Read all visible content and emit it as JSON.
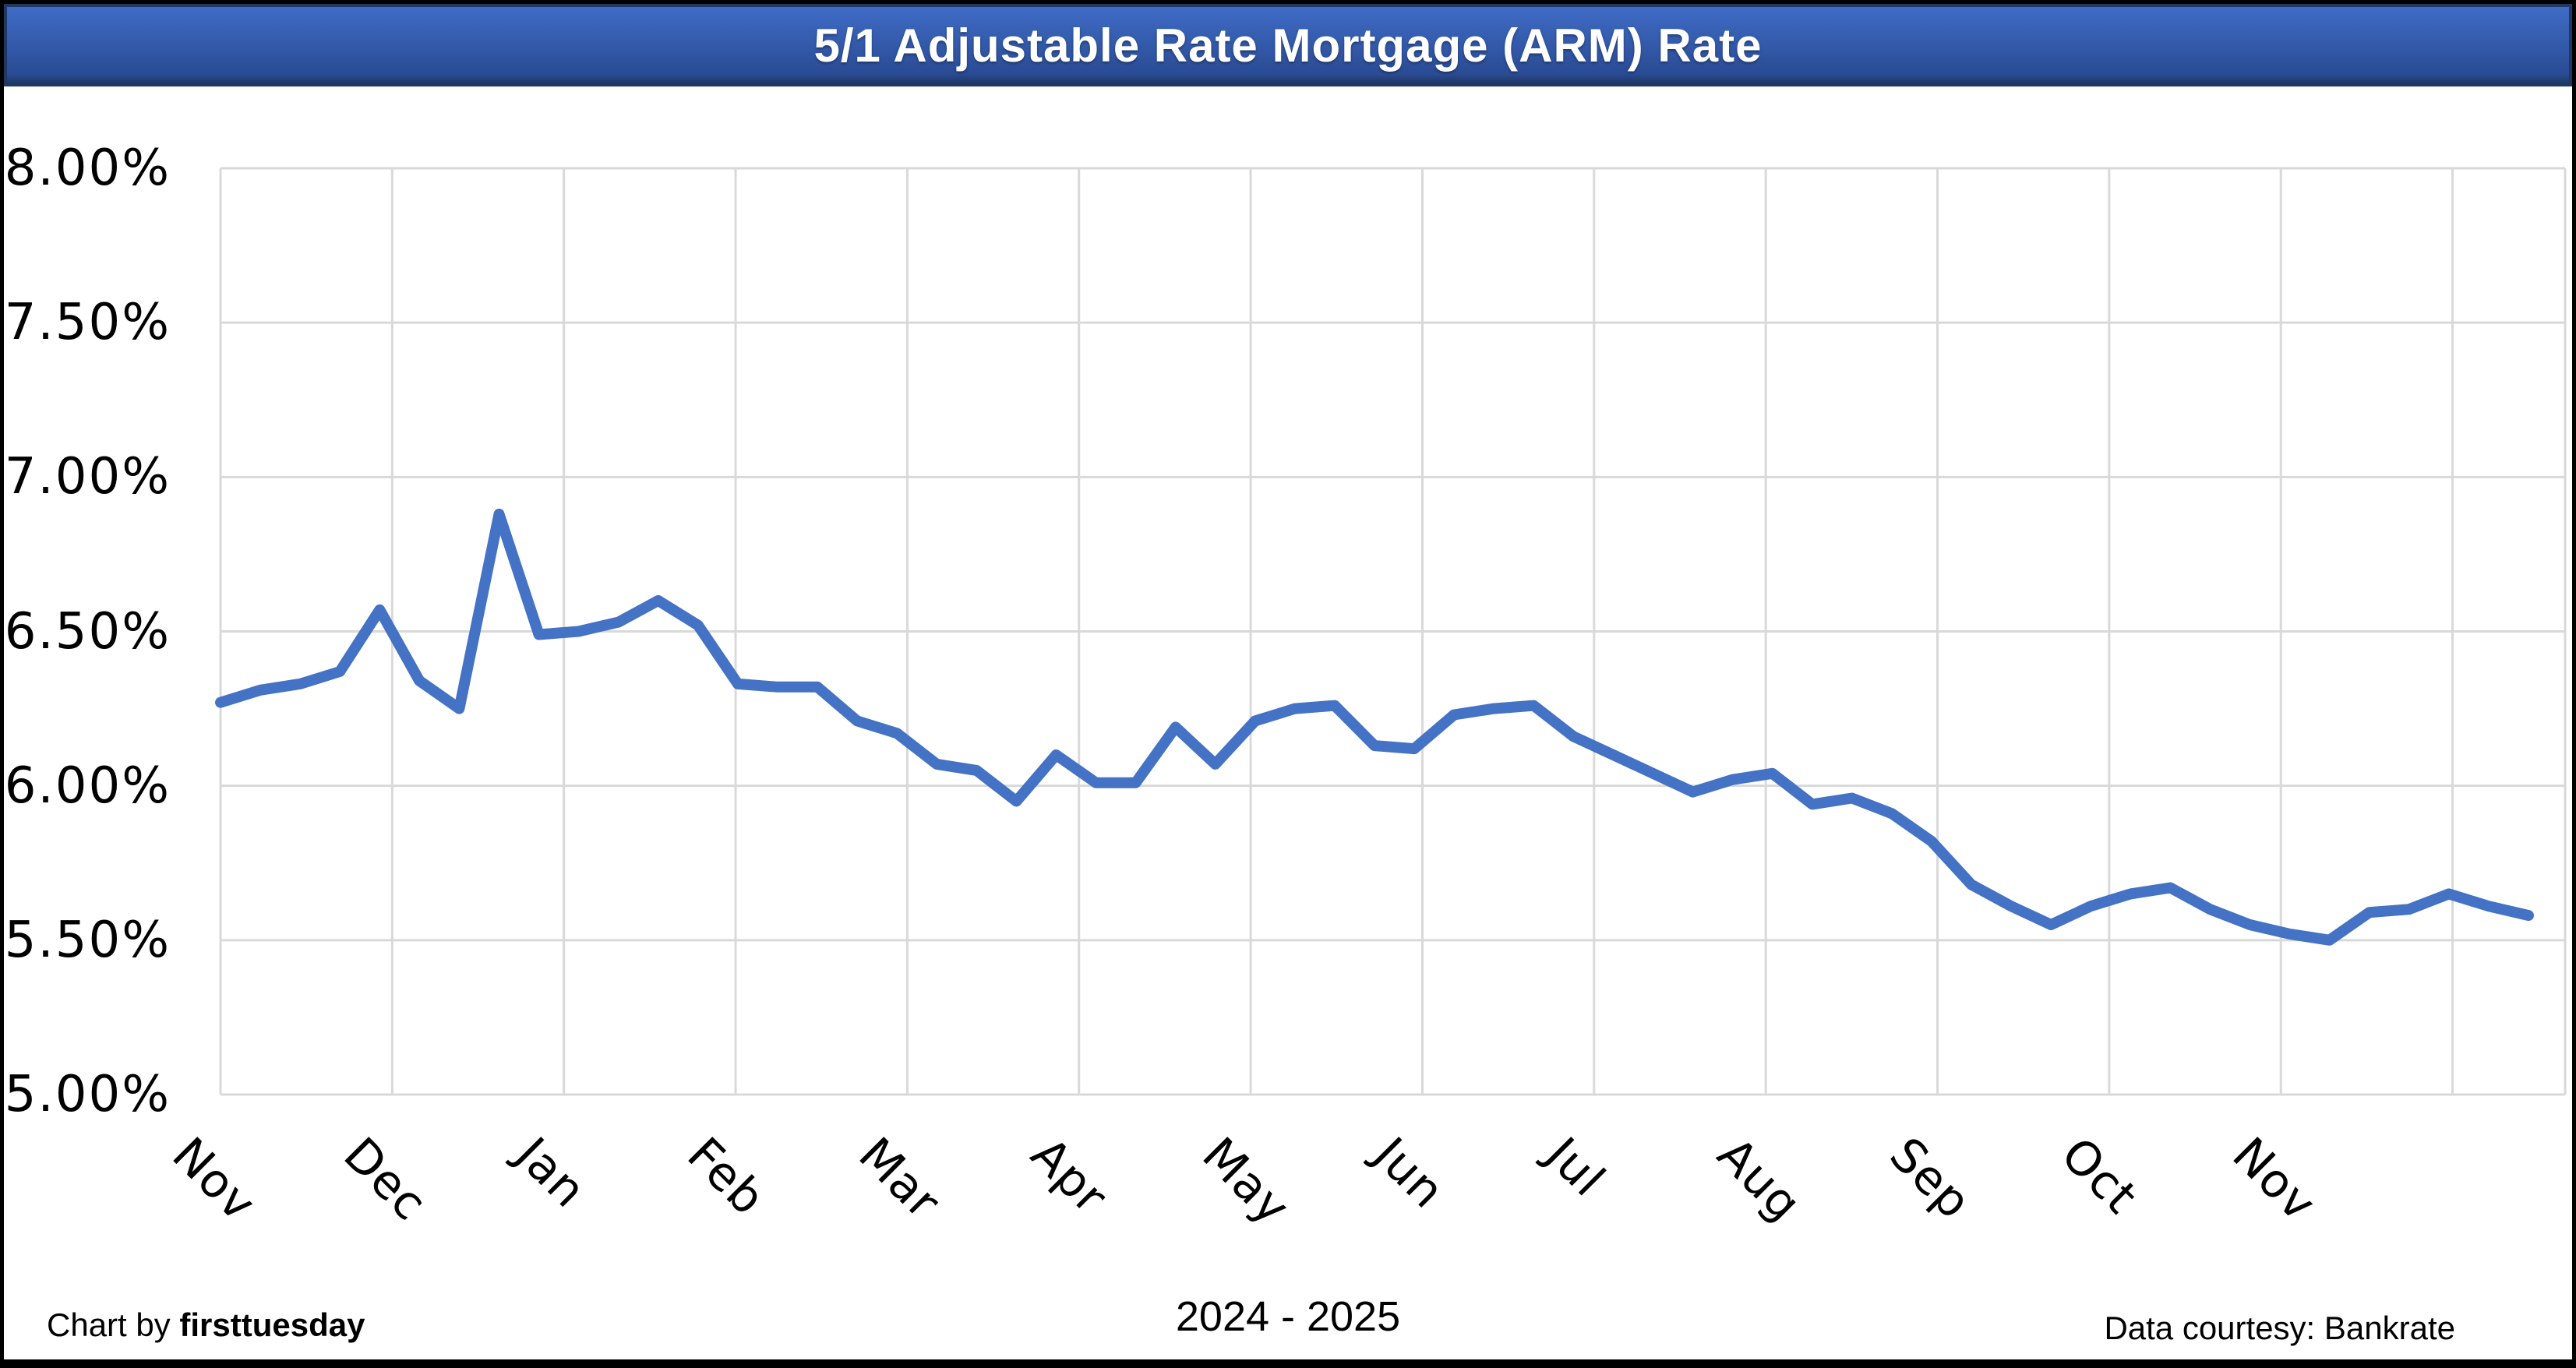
{
  "title": "5/1 Adjustable Rate Mortgage (ARM) Rate",
  "footer": {
    "credit_prefix": "Chart by ",
    "credit_brand": "firsttuesday",
    "period": "2024 - 2025",
    "source": "Data courtesy: Bankrate"
  },
  "chart_data": {
    "type": "line",
    "title": "5/1 Adjustable Rate Mortgage (ARM) Rate",
    "frequency": "weekly",
    "x_period": "2024 - 2025",
    "x_tick_labels": [
      "Nov",
      "Dec",
      "Jan",
      "Feb",
      "Mar",
      "Apr",
      "May",
      "Jun",
      "Jul",
      "Aug",
      "Sep",
      "Oct",
      "Nov"
    ],
    "y_tick_labels": [
      "8.00%",
      "7.50%",
      "7.00%",
      "6.50%",
      "6.00%",
      "5.50%",
      "5.00%"
    ],
    "ylim": [
      5.0,
      8.0
    ],
    "ytick_step": 0.5,
    "grid": true,
    "legend": "none",
    "series": [
      {
        "name": "5/1 ARM rate (%)",
        "values": [
          6.27,
          6.31,
          6.33,
          6.37,
          6.57,
          6.34,
          6.25,
          6.88,
          6.49,
          6.5,
          6.53,
          6.6,
          6.52,
          6.33,
          6.32,
          6.32,
          6.21,
          6.17,
          6.07,
          6.05,
          5.95,
          6.1,
          6.01,
          6.01,
          6.19,
          6.07,
          6.21,
          6.25,
          6.26,
          6.13,
          6.12,
          6.23,
          6.25,
          6.26,
          6.16,
          6.1,
          6.04,
          5.98,
          6.02,
          6.04,
          5.94,
          5.96,
          5.91,
          5.82,
          5.68,
          5.61,
          5.55,
          5.61,
          5.65,
          5.67,
          5.6,
          5.55,
          5.52,
          5.5,
          5.59,
          5.6,
          5.65,
          5.61,
          5.58
        ]
      }
    ],
    "line_color": "#4472C4",
    "grid_color": "#D9D9D9",
    "banner_top_color": "#3F6CC6",
    "banner_bottom_color": "#2A4B94",
    "banner_border_color": "#1F3864",
    "banner_text_color": "#FFFFFF"
  }
}
